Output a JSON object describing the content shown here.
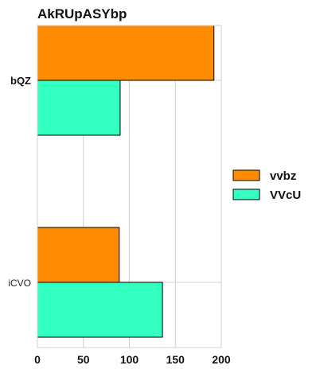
{
  "chart_data": {
    "type": "bar",
    "orientation": "horizontal",
    "title": "AkRUpASYbp",
    "xlabel": "",
    "ylabel": "",
    "xlim": [
      0,
      200
    ],
    "xticks": [
      0,
      50,
      100,
      150,
      200
    ],
    "categories": [
      "bQZ",
      "iCVO"
    ],
    "series": [
      {
        "name": "vvbz",
        "color": "#FF8C00",
        "values": [
          192,
          89
        ]
      },
      {
        "name": "VVcU",
        "color": "#33FFC0",
        "values": [
          90,
          136
        ]
      }
    ],
    "grid": true,
    "legend_position": "right"
  }
}
